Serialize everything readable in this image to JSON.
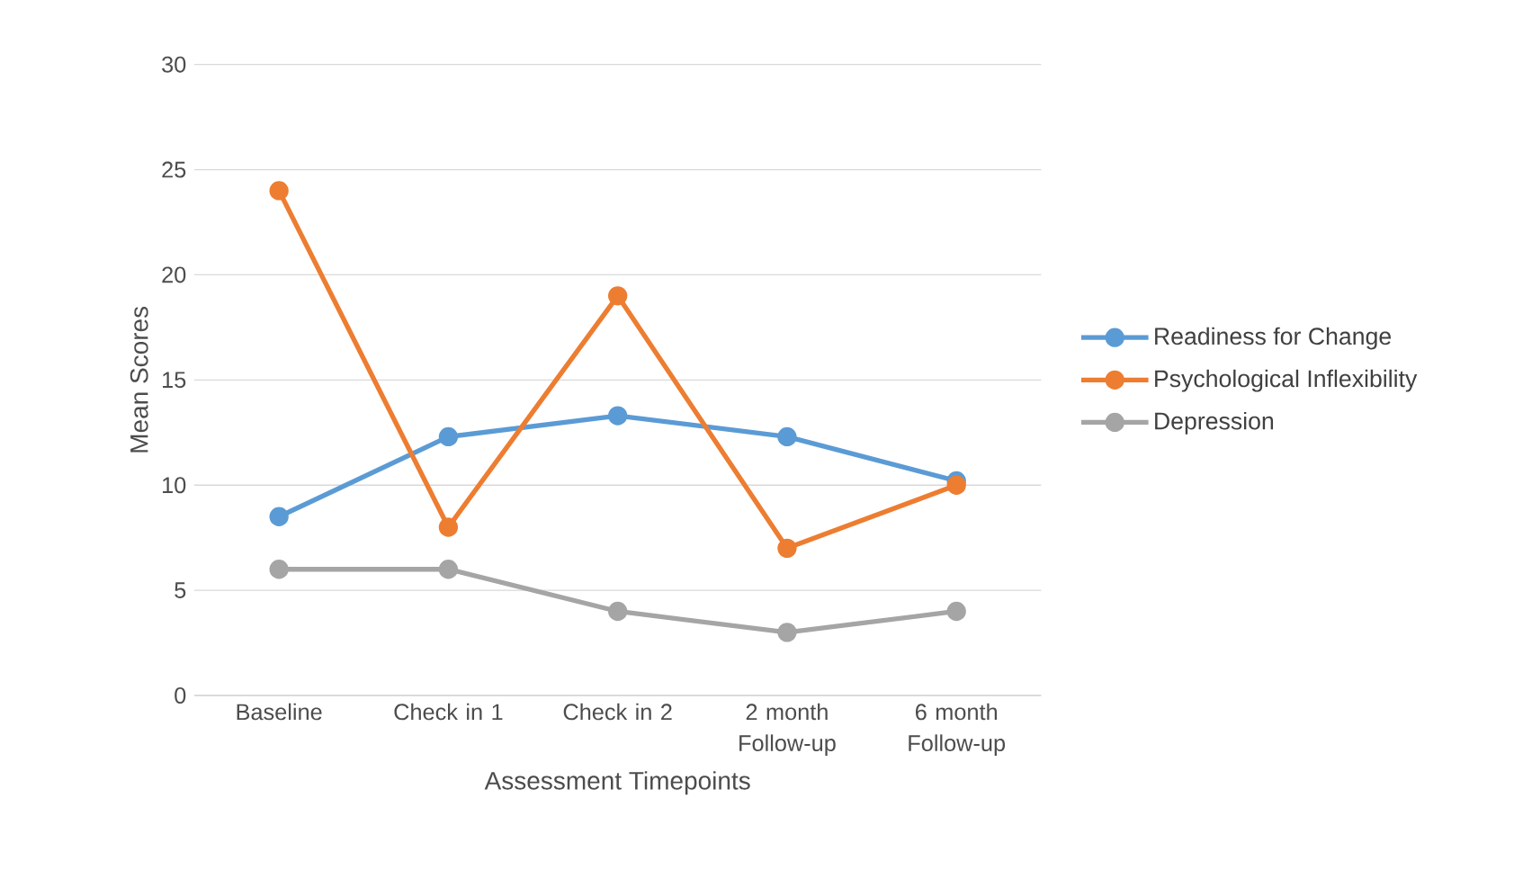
{
  "chart_data": {
    "type": "line",
    "xlabel": "Assessment Timepoints",
    "ylabel": "Mean Scores",
    "categories": [
      "Baseline",
      "Check in 1",
      "Check in 2",
      "2 month Follow-up",
      "6 month Follow-up"
    ],
    "series": [
      {
        "name": "Readiness for Change",
        "color": "#5b9bd5",
        "values": [
          8.5,
          12.3,
          13.3,
          12.3,
          10.2
        ]
      },
      {
        "name": "Psychological Inflexibility",
        "color": "#ed7d31",
        "values": [
          24.0,
          8.0,
          19.0,
          7.0,
          10.0
        ]
      },
      {
        "name": "Depression",
        "color": "#a5a5a5",
        "values": [
          6.0,
          6.0,
          4.0,
          3.0,
          4.0
        ]
      }
    ],
    "ylim": [
      0,
      30
    ],
    "yticks": [
      0,
      5,
      10,
      15,
      20,
      25,
      30
    ],
    "grid": "y",
    "legend": "right",
    "marker": "circle",
    "line_style": "solid"
  }
}
